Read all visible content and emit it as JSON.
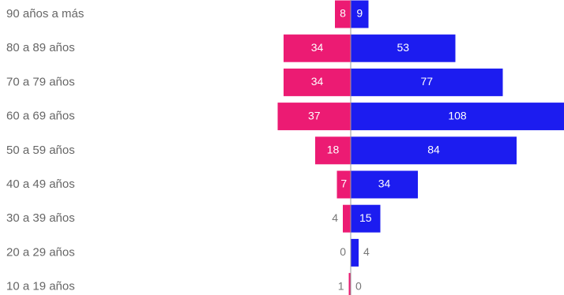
{
  "chart_data": {
    "type": "bar",
    "orientation": "horizontal-diverging",
    "categories": [
      "90 años a más",
      "80 a 89 años",
      "70 a 79 años",
      "60 a 69 años",
      "50 a 59 años",
      "40 a 49 años",
      "30 a 39 años",
      "20 a 29 años",
      "10 a 19 años"
    ],
    "series": [
      {
        "values": [
          8,
          34,
          34,
          37,
          18,
          7,
          4,
          0,
          1
        ],
        "color": "#ec1b73",
        "side": "left"
      },
      {
        "values": [
          9,
          53,
          77,
          108,
          84,
          34,
          15,
          4,
          0
        ],
        "color": "#1c1cf0",
        "side": "right"
      }
    ],
    "xlim": [
      -40,
      110
    ],
    "grid": false,
    "legend": "none",
    "center_line_color": "#999999"
  }
}
